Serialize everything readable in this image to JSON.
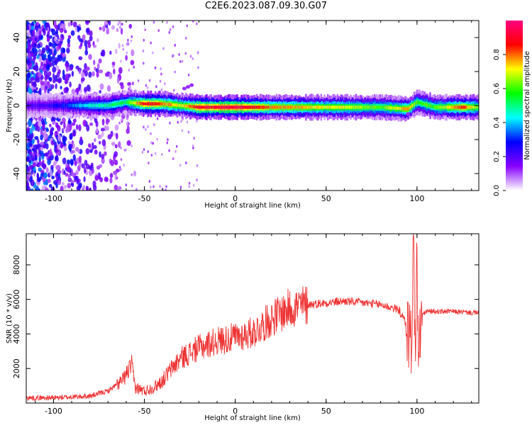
{
  "figure_title": "C2E6.2023.087.09.30.G07",
  "chart_data": [
    {
      "type": "heatmap",
      "title": "",
      "xlabel": "Height of straight line (km)",
      "ylabel": "Frequency (Hz)",
      "xlim": [
        -115,
        134
      ],
      "ylim": [
        -50,
        50
      ],
      "xticks": [
        -100,
        -50,
        0,
        50,
        100
      ],
      "yticks": [
        -40,
        -20,
        0,
        20,
        40
      ],
      "grid": false,
      "colorbar": {
        "label": "Normalized spectral amplitude",
        "range": [
          0.0,
          1.0
        ],
        "ticks": [
          0.0,
          0.2,
          0.4,
          0.6,
          0.8
        ],
        "colormap": [
          "#ffffff",
          "#8800ff",
          "#0000ff",
          "#00ffff",
          "#00ff00",
          "#ffff00",
          "#ff0000",
          "#ff0080"
        ]
      },
      "ridge": [
        {
          "x": -110,
          "center_hz": 0,
          "peak": 0.2
        },
        {
          "x": -100,
          "center_hz": 0,
          "peak": 0.25
        },
        {
          "x": -90,
          "center_hz": 0,
          "peak": 0.35
        },
        {
          "x": -80,
          "center_hz": 0,
          "peak": 0.45
        },
        {
          "x": -70,
          "center_hz": 0,
          "peak": 0.5
        },
        {
          "x": -60,
          "center_hz": 2,
          "peak": 0.55
        },
        {
          "x": -50,
          "center_hz": 1,
          "peak": 0.9
        },
        {
          "x": -40,
          "center_hz": 1,
          "peak": 0.8
        },
        {
          "x": -30,
          "center_hz": 0,
          "peak": 0.7
        },
        {
          "x": -20,
          "center_hz": -1,
          "peak": 0.9
        },
        {
          "x": 0,
          "center_hz": -1,
          "peak": 0.95
        },
        {
          "x": 20,
          "center_hz": -1,
          "peak": 0.8
        },
        {
          "x": 40,
          "center_hz": -1,
          "peak": 0.75
        },
        {
          "x": 60,
          "center_hz": -1,
          "peak": 0.7
        },
        {
          "x": 80,
          "center_hz": -1,
          "peak": 0.6
        },
        {
          "x": 95,
          "center_hz": -2,
          "peak": 0.8
        },
        {
          "x": 100,
          "center_hz": 2,
          "peak": 0.6
        },
        {
          "x": 110,
          "center_hz": -1,
          "peak": 0.6
        },
        {
          "x": 125,
          "center_hz": -1,
          "peak": 0.85
        },
        {
          "x": 134,
          "center_hz": -1,
          "peak": 0.6
        }
      ],
      "noise_region_x": [
        -115,
        -65
      ],
      "ridge_halfwidth_hz": 3
    },
    {
      "type": "line",
      "title": "",
      "xlabel": "Height of straight line (km)",
      "ylabel": "SNR (10 * v/v)",
      "xlim": [
        -115,
        134
      ],
      "ylim": [
        0,
        9800
      ],
      "xticks": [
        -100,
        -50,
        0,
        50,
        100
      ],
      "yticks": [
        2000,
        4000,
        6000,
        8000
      ],
      "grid": false,
      "color": "#ee3333",
      "series": [
        {
          "x": [
            -115,
            -100,
            -90,
            -80,
            -70,
            -62,
            -57,
            -55,
            -50,
            -45,
            -40,
            -35,
            -30,
            -25,
            -20,
            -10,
            0,
            10,
            20,
            30,
            40,
            50,
            60,
            70,
            80,
            90,
            94,
            97,
            98,
            99,
            100,
            101,
            102,
            105,
            110,
            120,
            134
          ],
          "y": [
            300,
            300,
            350,
            400,
            700,
            1300,
            2200,
            900,
            700,
            900,
            1300,
            2000,
            2600,
            2900,
            3200,
            3600,
            3800,
            4100,
            4900,
            5500,
            5700,
            5800,
            5900,
            5800,
            5700,
            5400,
            4600,
            3500,
            9500,
            3000,
            8600,
            1500,
            5000,
            5300,
            5300,
            5300,
            5200
          ]
        }
      ]
    }
  ]
}
